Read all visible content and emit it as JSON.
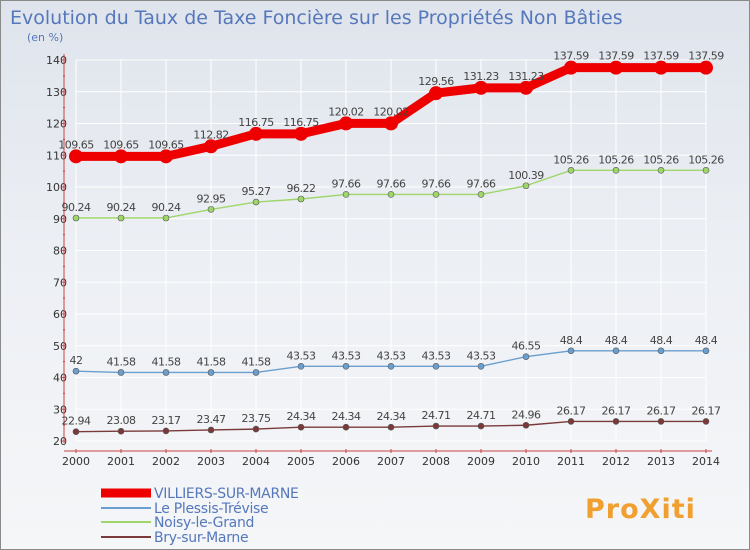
{
  "chart_data": {
    "type": "line",
    "title": "Evolution du Taux de Taxe Foncière sur les Propriétés Non Bâties",
    "subtitle": "(en %)",
    "x": [
      "2000",
      "2001",
      "2002",
      "2003",
      "2004",
      "2005",
      "2006",
      "2007",
      "2008",
      "2009",
      "2010",
      "2011",
      "2012",
      "2013",
      "2014"
    ],
    "ylim": [
      20,
      140
    ],
    "yticks": [
      20,
      30,
      40,
      50,
      60,
      70,
      80,
      90,
      100,
      110,
      120,
      130,
      140
    ],
    "grid": true,
    "legend_position": "bottom-left",
    "series": [
      {
        "name": "VILLIERS-SUR-MARNE",
        "color": "#ee0000",
        "values": [
          109.65,
          109.65,
          109.65,
          112.82,
          116.75,
          116.75,
          120.02,
          120.02,
          129.56,
          131.23,
          131.23,
          137.59,
          137.59,
          137.59,
          137.59
        ],
        "labels": [
          "109.65",
          "109.65",
          "109.65",
          "112.82",
          "116.75",
          "116.75",
          "120.02",
          "120.02",
          "129.56",
          "131.23",
          "131.23",
          "137.59",
          "137.59",
          "137.59",
          "137.59"
        ]
      },
      {
        "name": "Le Plessis-Trévise",
        "color": "#6a9fd0",
        "values": [
          42,
          41.58,
          41.58,
          41.58,
          41.58,
          43.53,
          43.53,
          43.53,
          43.53,
          43.53,
          46.55,
          48.4,
          48.4,
          48.4,
          48.4
        ],
        "labels": [
          "42",
          "41.58",
          "41.58",
          "41.58",
          "41.58",
          "43.53",
          "43.53",
          "43.53",
          "43.53",
          "43.53",
          "46.55",
          "48.4",
          "48.4",
          "48.4",
          "48.4"
        ]
      },
      {
        "name": "Noisy-le-Grand",
        "color": "#9fd66a",
        "values": [
          90.24,
          90.24,
          90.24,
          92.95,
          95.27,
          96.22,
          97.66,
          97.66,
          97.66,
          97.66,
          100.39,
          105.26,
          105.26,
          105.26,
          105.26
        ],
        "labels": [
          "90.24",
          "90.24",
          "90.24",
          "92.95",
          "95.27",
          "96.22",
          "97.66",
          "97.66",
          "97.66",
          "97.66",
          "100.39",
          "105.26",
          "105.26",
          "105.26",
          "105.26"
        ]
      },
      {
        "name": "Bry-sur-Marne",
        "color": "#7a3a3a",
        "values": [
          22.94,
          23.08,
          23.17,
          23.47,
          23.75,
          24.34,
          24.34,
          24.34,
          24.71,
          24.71,
          24.96,
          26.17,
          26.17,
          26.17,
          26.17
        ],
        "labels": [
          "22.94",
          "23.08",
          "23.17",
          "23.47",
          "23.75",
          "24.34",
          "24.34",
          "24.34",
          "24.71",
          "24.71",
          "24.96",
          "26.17",
          "26.17",
          "26.17",
          "26.17"
        ]
      }
    ]
  },
  "logo": {
    "text": "ProXiti"
  }
}
